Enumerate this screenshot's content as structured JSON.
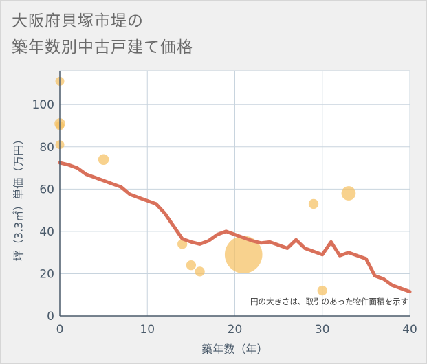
{
  "chart_data": {
    "type": "scatter",
    "title": [
      "大阪府貝塚市堤の",
      "築年数別中古戸建て価格"
    ],
    "xlabel": "築年数（年）",
    "ylabel": "坪（3.3㎡）単価（万円）",
    "xlim": [
      0,
      40
    ],
    "ylim": [
      0,
      116
    ],
    "xticks": [
      0,
      10,
      20,
      30,
      40
    ],
    "yticks": [
      0,
      20,
      40,
      60,
      80,
      100
    ],
    "grid": true,
    "note": "円の大きさは、取引のあった物件面積を示す",
    "colors": {
      "trend": "#d9705a",
      "bubble": "#f5c063",
      "grid": "#c8d4de",
      "axis": "#4a5a6a"
    },
    "points": [
      {
        "x": 0,
        "y": 111,
        "size": 1
      },
      {
        "x": 0,
        "y": 91,
        "size": 1.2
      },
      {
        "x": 0,
        "y": 90,
        "size": 1
      },
      {
        "x": 0,
        "y": 81,
        "size": 1
      },
      {
        "x": 5,
        "y": 74,
        "size": 1.2
      },
      {
        "x": 14,
        "y": 34,
        "size": 1.1
      },
      {
        "x": 15,
        "y": 24,
        "size": 1.1
      },
      {
        "x": 16,
        "y": 21,
        "size": 1.1
      },
      {
        "x": 21,
        "y": 29,
        "size": 4.2
      },
      {
        "x": 29,
        "y": 53,
        "size": 1.1
      },
      {
        "x": 30,
        "y": 12,
        "size": 1.1
      },
      {
        "x": 33,
        "y": 58,
        "size": 1.6
      }
    ],
    "trend": {
      "x": [
        0,
        1,
        2,
        3,
        4,
        5,
        6,
        7,
        8,
        9,
        10,
        11,
        12,
        13,
        14,
        15,
        16,
        17,
        18,
        19,
        20,
        21,
        22,
        23,
        24,
        25,
        26,
        27,
        28,
        29,
        30,
        31,
        32,
        33,
        34,
        35,
        36,
        37,
        38,
        39,
        40
      ],
      "y": [
        72.5,
        71.5,
        70,
        67,
        65.5,
        64,
        62.5,
        61,
        57.5,
        56,
        54.5,
        53,
        48.5,
        42.5,
        36.5,
        35,
        34,
        35.5,
        38.5,
        40,
        38.5,
        37,
        35.5,
        34.5,
        35,
        33.5,
        32,
        36,
        32,
        30.5,
        29,
        35,
        28.5,
        30,
        28.5,
        27,
        19,
        17.5,
        14.5,
        13,
        11.5
      ]
    }
  }
}
